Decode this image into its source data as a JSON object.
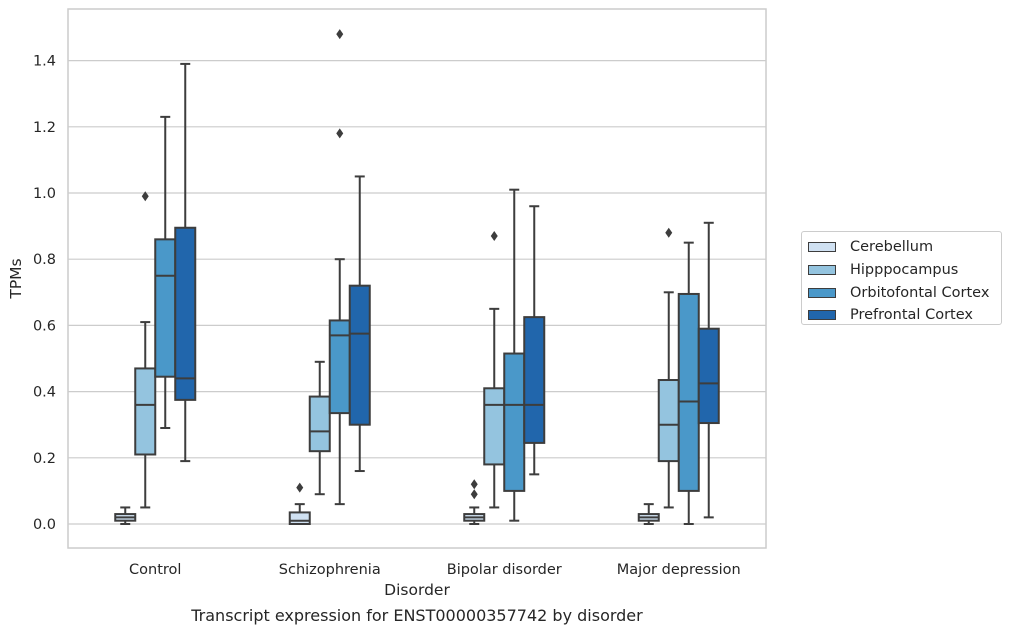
{
  "chart_data": {
    "type": "box",
    "xlabel": "Disorder",
    "ylabel": "TPMs",
    "ylim": [
      -0.07,
      1.56
    ],
    "yticks": [
      "0.0",
      "0.2",
      "0.4",
      "0.6",
      "0.8",
      "1.0",
      "1.2",
      "1.4"
    ],
    "grid": "horizontal",
    "legend_position": "right",
    "categories": [
      "Control",
      "Schizophrenia",
      "Bipolar disorder",
      "Major depression"
    ],
    "series": [
      {
        "name": "Cerebellum",
        "color": "#d0e1f2",
        "boxes": [
          {
            "whislo": 0.0,
            "q1": 0.01,
            "med": 0.02,
            "q3": 0.03,
            "whishi": 0.05,
            "fliers": []
          },
          {
            "whislo": 0.0,
            "q1": 0.0,
            "med": 0.01,
            "q3": 0.035,
            "whishi": 0.06,
            "fliers": [
              0.11
            ]
          },
          {
            "whislo": 0.0,
            "q1": 0.01,
            "med": 0.02,
            "q3": 0.03,
            "whishi": 0.05,
            "fliers": [
              0.09,
              0.12
            ]
          },
          {
            "whislo": 0.0,
            "q1": 0.01,
            "med": 0.02,
            "q3": 0.03,
            "whishi": 0.06,
            "fliers": []
          }
        ]
      },
      {
        "name": "Hipppocampus",
        "color": "#94c4df",
        "boxes": [
          {
            "whislo": 0.05,
            "q1": 0.21,
            "med": 0.36,
            "q3": 0.47,
            "whishi": 0.61,
            "fliers": [
              0.99
            ]
          },
          {
            "whislo": 0.09,
            "q1": 0.22,
            "med": 0.28,
            "q3": 0.385,
            "whishi": 0.49,
            "fliers": []
          },
          {
            "whislo": 0.05,
            "q1": 0.18,
            "med": 0.36,
            "q3": 0.41,
            "whishi": 0.65,
            "fliers": [
              0.87
            ]
          },
          {
            "whislo": 0.05,
            "q1": 0.19,
            "med": 0.3,
            "q3": 0.435,
            "whishi": 0.7,
            "fliers": [
              0.88
            ]
          }
        ]
      },
      {
        "name": "Orbitofontal Cortex",
        "color": "#4a98c9",
        "boxes": [
          {
            "whislo": 0.29,
            "q1": 0.445,
            "med": 0.75,
            "q3": 0.86,
            "whishi": 1.23,
            "fliers": []
          },
          {
            "whislo": 0.06,
            "q1": 0.335,
            "med": 0.57,
            "q3": 0.615,
            "whishi": 0.8,
            "fliers": [
              1.18,
              1.48
            ]
          },
          {
            "whislo": 0.01,
            "q1": 0.1,
            "med": 0.36,
            "q3": 0.515,
            "whishi": 1.01,
            "fliers": []
          },
          {
            "whislo": 0.0,
            "q1": 0.1,
            "med": 0.37,
            "q3": 0.695,
            "whishi": 0.85,
            "fliers": []
          }
        ]
      },
      {
        "name": "Prefrontal Cortex",
        "color": "#2166ac",
        "boxes": [
          {
            "whislo": 0.19,
            "q1": 0.375,
            "med": 0.44,
            "q3": 0.895,
            "whishi": 1.39,
            "fliers": []
          },
          {
            "whislo": 0.16,
            "q1": 0.3,
            "med": 0.575,
            "q3": 0.72,
            "whishi": 1.05,
            "fliers": []
          },
          {
            "whislo": 0.15,
            "q1": 0.245,
            "med": 0.36,
            "q3": 0.625,
            "whishi": 0.96,
            "fliers": []
          },
          {
            "whislo": 0.02,
            "q1": 0.305,
            "med": 0.425,
            "q3": 0.59,
            "whishi": 0.91,
            "fliers": []
          }
        ]
      }
    ]
  },
  "caption": "Transcript expression for ENST00000357742 by disorder"
}
